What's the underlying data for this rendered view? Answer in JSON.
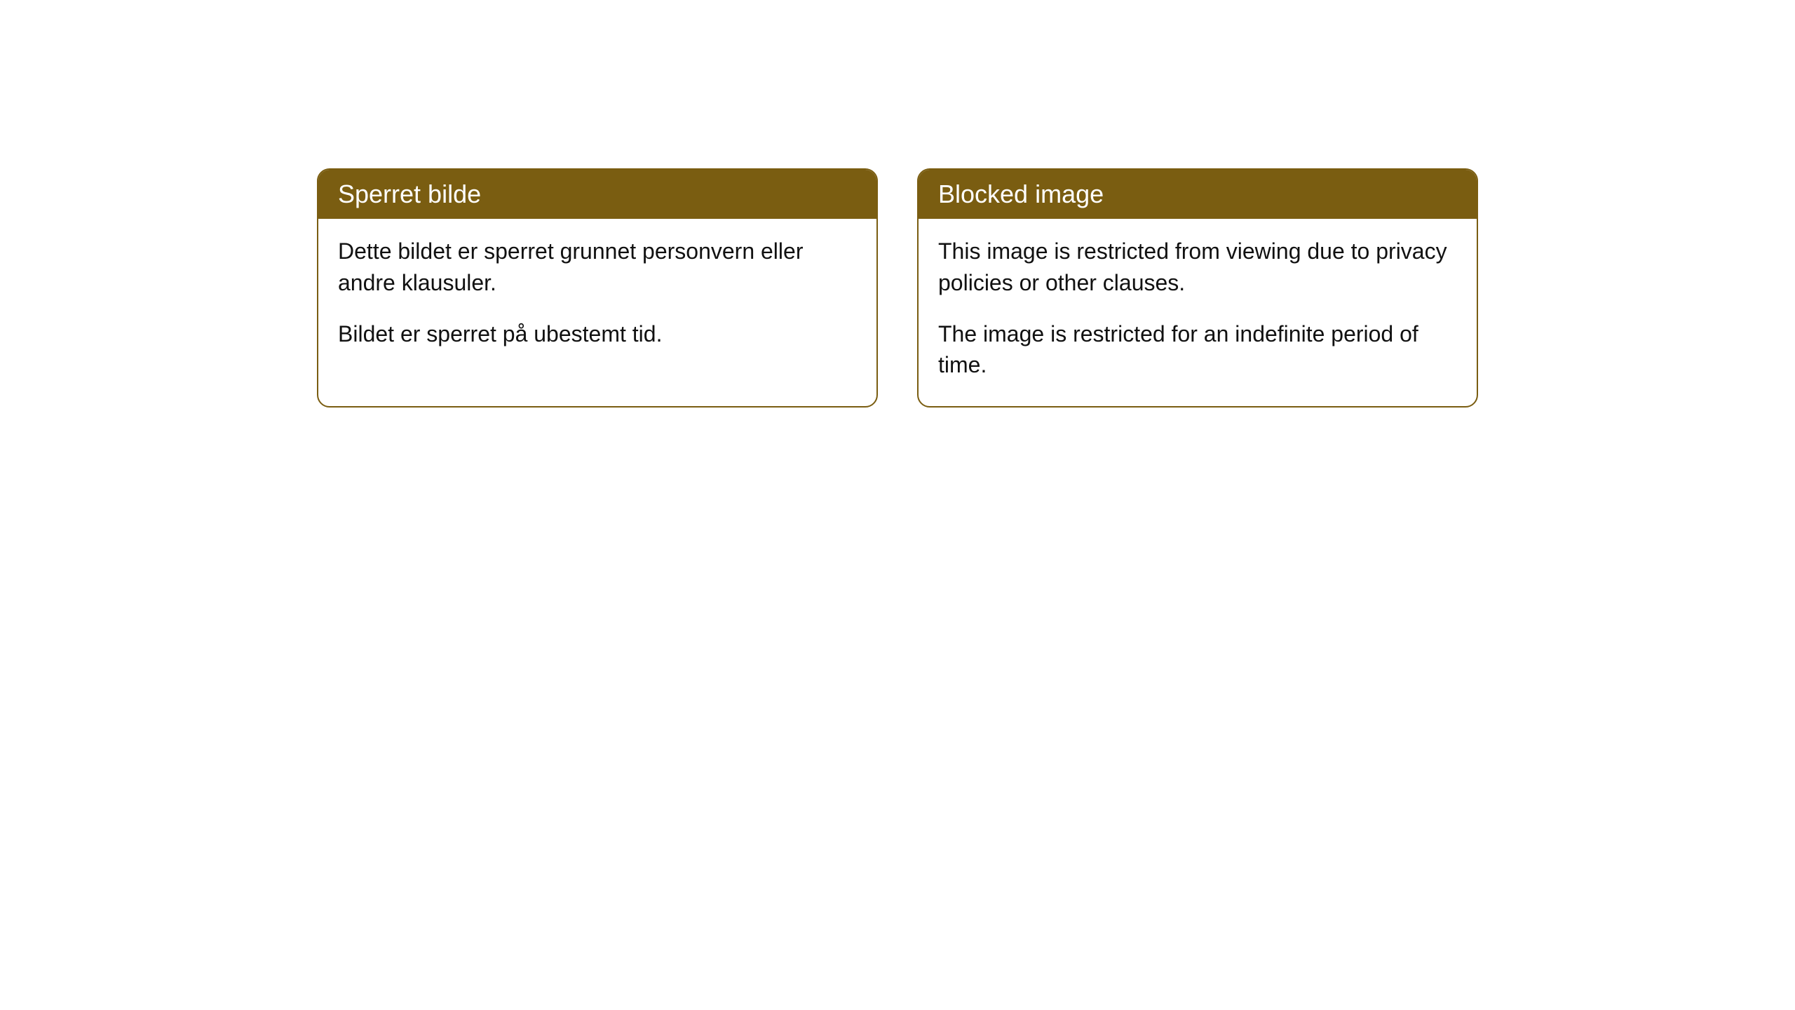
{
  "cards": [
    {
      "header": "Sperret bilde",
      "paragraph1": "Dette bildet er sperret grunnet personvern eller andre klausuler.",
      "paragraph2": "Bildet er sperret på ubestemt tid."
    },
    {
      "header": "Blocked image",
      "paragraph1": "This image is restricted from viewing due to privacy policies or other clauses.",
      "paragraph2": "The image is restricted for an indefinite period of time."
    }
  ],
  "styles": {
    "header_bg_color": "#7a5d11",
    "header_text_color": "#ffffff",
    "border_color": "#7a5d11",
    "body_text_color": "#111111",
    "page_bg_color": "#ffffff",
    "border_radius": 18,
    "header_fontsize": 36,
    "body_fontsize": 32
  }
}
